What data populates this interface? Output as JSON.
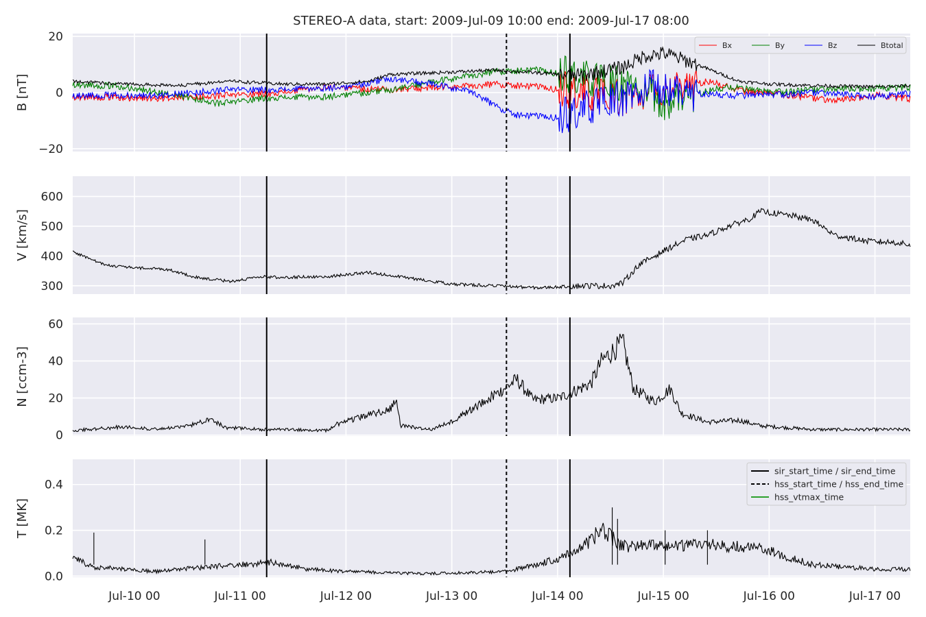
{
  "figure": {
    "title": "STEREO-A data, start: 2009-Jul-09 10:00  end: 2009-Jul-17 08:00",
    "background": "#ffffff",
    "axes_background": "#eaeaf2",
    "grid_color": "#ffffff"
  },
  "chart_data": [
    {
      "type": "line",
      "panel": "B",
      "ylabel": "B [nT]",
      "ylim": [
        -21,
        21
      ],
      "yticks": [
        -20,
        0,
        20
      ],
      "ytick_labels": [
        "−20",
        "0",
        "20"
      ],
      "grid": true,
      "legend": {
        "placement": "top-right",
        "columns": 4
      },
      "series": [
        {
          "name": "Bx",
          "color": "#ff0000",
          "key": [
            [
              0,
              -1.5
            ],
            [
              0.8,
              -2
            ],
            [
              1.5,
              -1
            ],
            [
              2.0,
              0
            ],
            [
              2.4,
              2
            ],
            [
              3.0,
              1
            ],
            [
              3.6,
              2
            ],
            [
              4.0,
              3
            ],
            [
              4.4,
              2
            ],
            [
              4.8,
              0
            ],
            [
              5.2,
              -2
            ],
            [
              5.6,
              1
            ],
            [
              6.0,
              4
            ],
            [
              6.4,
              0
            ],
            [
              6.8,
              -1
            ],
            [
              7.2,
              -3
            ],
            [
              7.6,
              -1
            ],
            [
              8.0,
              -2.5
            ]
          ]
        },
        {
          "name": "By",
          "color": "#008000",
          "key": [
            [
              0,
              3
            ],
            [
              0.5,
              2
            ],
            [
              1.0,
              -1
            ],
            [
              1.4,
              -4
            ],
            [
              1.8,
              -2
            ],
            [
              2.4,
              -1.5
            ],
            [
              3.0,
              1
            ],
            [
              3.6,
              5
            ],
            [
              4.0,
              7.5
            ],
            [
              4.4,
              8
            ],
            [
              5.0,
              4
            ],
            [
              5.3,
              2
            ],
            [
              5.6,
              -4
            ],
            [
              5.8,
              -1
            ],
            [
              6.2,
              2
            ],
            [
              6.6,
              0
            ],
            [
              7.0,
              1
            ],
            [
              7.6,
              1.5
            ],
            [
              8.0,
              2
            ]
          ]
        },
        {
          "name": "Bz",
          "color": "#0000ff",
          "key": [
            [
              0,
              -1
            ],
            [
              0.8,
              -1
            ],
            [
              1.5,
              1
            ],
            [
              2.0,
              1
            ],
            [
              2.6,
              2
            ],
            [
              3.0,
              5
            ],
            [
              3.4,
              3
            ],
            [
              3.8,
              0
            ],
            [
              4.0,
              -5
            ],
            [
              4.2,
              -8
            ],
            [
              4.6,
              -9
            ],
            [
              4.9,
              -5
            ],
            [
              5.2,
              -2
            ],
            [
              5.5,
              2
            ],
            [
              5.8,
              0
            ],
            [
              6.2,
              -1
            ],
            [
              6.6,
              -1
            ],
            [
              7.0,
              0
            ],
            [
              7.6,
              -1.5
            ],
            [
              8.0,
              0
            ]
          ]
        },
        {
          "name": "Btotal",
          "color": "#000000",
          "key": [
            [
              0,
              4
            ],
            [
              0.5,
              3
            ],
            [
              1.0,
              2.5
            ],
            [
              1.5,
              4
            ],
            [
              2.0,
              3
            ],
            [
              2.4,
              3
            ],
            [
              2.8,
              4
            ],
            [
              3.0,
              6.5
            ],
            [
              3.4,
              7
            ],
            [
              4.0,
              8
            ],
            [
              4.4,
              7
            ],
            [
              4.8,
              6
            ],
            [
              5.2,
              9
            ],
            [
              5.4,
              13
            ],
            [
              5.6,
              14
            ],
            [
              5.9,
              10
            ],
            [
              6.1,
              7
            ],
            [
              6.3,
              4
            ],
            [
              6.6,
              3
            ],
            [
              7.0,
              2.5
            ],
            [
              7.6,
              2
            ],
            [
              8.0,
              2.5
            ]
          ]
        }
      ]
    },
    {
      "type": "line",
      "panel": "V",
      "ylabel": "V [km/s]",
      "ylim": [
        272,
        668
      ],
      "yticks": [
        300,
        400,
        500,
        600
      ],
      "ytick_labels": [
        "300",
        "400",
        "500",
        "600"
      ],
      "grid": true,
      "series": [
        {
          "color": "#000000",
          "key": [
            [
              0,
              415
            ],
            [
              0.3,
              370
            ],
            [
              0.6,
              360
            ],
            [
              0.9,
              355
            ],
            [
              1.2,
              325
            ],
            [
              1.5,
              315
            ],
            [
              1.8,
              330
            ],
            [
              2.0,
              328
            ],
            [
              2.2,
              330
            ],
            [
              2.4,
              330
            ],
            [
              2.6,
              338
            ],
            [
              2.8,
              345
            ],
            [
              3.0,
              335
            ],
            [
              3.3,
              320
            ],
            [
              3.6,
              305
            ],
            [
              4.0,
              300
            ],
            [
              4.4,
              293
            ],
            [
              4.8,
              300
            ],
            [
              5.1,
              300
            ],
            [
              5.2,
              310
            ],
            [
              5.35,
              370
            ],
            [
              5.6,
              420
            ],
            [
              5.8,
              455
            ],
            [
              6.0,
              470
            ],
            [
              6.2,
              500
            ],
            [
              6.4,
              525
            ],
            [
              6.5,
              550
            ],
            [
              6.8,
              535
            ],
            [
              7.0,
              520
            ],
            [
              7.2,
              470
            ],
            [
              7.5,
              450
            ],
            [
              7.8,
              445
            ],
            [
              8.0,
              430
            ]
          ]
        }
      ]
    },
    {
      "type": "line",
      "panel": "N",
      "ylabel": "N [ccm-3]",
      "ylim": [
        -0.5,
        63.5
      ],
      "yticks": [
        0,
        20,
        40,
        60
      ],
      "ytick_labels": [
        "0",
        "20",
        "40",
        "60"
      ],
      "grid": true,
      "series": [
        {
          "color": "#000000",
          "key": [
            [
              0,
              2.5
            ],
            [
              0.5,
              4.5
            ],
            [
              0.8,
              3
            ],
            [
              1.1,
              5
            ],
            [
              1.3,
              9
            ],
            [
              1.45,
              4
            ],
            [
              1.8,
              3
            ],
            [
              2.0,
              3
            ],
            [
              2.4,
              2.5
            ],
            [
              2.5,
              6
            ],
            [
              2.8,
              11
            ],
            [
              3.0,
              14
            ],
            [
              3.05,
              20
            ],
            [
              3.1,
              5
            ],
            [
              3.4,
              3
            ],
            [
              3.6,
              8
            ],
            [
              3.8,
              15
            ],
            [
              4.0,
              22
            ],
            [
              4.2,
              30
            ],
            [
              4.35,
              19
            ],
            [
              4.6,
              20
            ],
            [
              4.9,
              28
            ],
            [
              5.0,
              40
            ],
            [
              5.2,
              50
            ],
            [
              5.3,
              25
            ],
            [
              5.5,
              18
            ],
            [
              5.65,
              25
            ],
            [
              5.75,
              12
            ],
            [
              6.0,
              7
            ],
            [
              6.3,
              8
            ],
            [
              6.5,
              5
            ],
            [
              7.0,
              3
            ],
            [
              8.0,
              3
            ],
            [
              8.6,
              4
            ],
            [
              9.0,
              7
            ],
            [
              9.4,
              9
            ]
          ]
        }
      ]
    },
    {
      "type": "line",
      "panel": "T",
      "ylabel": "T [MK]",
      "ylim": [
        -0.005,
        0.51
      ],
      "yticks": [
        0.0,
        0.2,
        0.4
      ],
      "ytick_labels": [
        "0.0",
        "0.2",
        "0.4"
      ],
      "grid": true,
      "legend": {
        "placement": "top-right",
        "columns": 1
      },
      "xlim_days": [
        0,
        7.9167
      ],
      "x_tick_labels": [
        "Jul-10 00",
        "Jul-11 00",
        "Jul-12 00",
        "Jul-13 00",
        "Jul-14 00",
        "Jul-15 00",
        "Jul-16 00",
        "Jul-17 00"
      ],
      "x_ticks_days": [
        0.5833,
        1.5833,
        2.5833,
        3.5833,
        4.5833,
        5.5833,
        6.5833,
        7.5833
      ],
      "series": [
        {
          "color": "#000000",
          "key": [
            [
              0,
              0.08
            ],
            [
              0.2,
              0.04
            ],
            [
              0.5,
              0.03
            ],
            [
              0.8,
              0.02
            ],
            [
              1.0,
              0.03
            ],
            [
              1.3,
              0.04
            ],
            [
              1.6,
              0.05
            ],
            [
              1.9,
              0.06
            ],
            [
              2.0,
              0.05
            ],
            [
              2.2,
              0.03
            ],
            [
              2.6,
              0.02
            ],
            [
              3.0,
              0.015
            ],
            [
              3.3,
              0.01
            ],
            [
              3.7,
              0.015
            ],
            [
              4.1,
              0.02
            ],
            [
              4.3,
              0.04
            ],
            [
              4.6,
              0.08
            ],
            [
              4.8,
              0.12
            ],
            [
              5.0,
              0.2
            ],
            [
              5.2,
              0.13
            ],
            [
              5.6,
              0.13
            ],
            [
              6.0,
              0.14
            ],
            [
              6.5,
              0.12
            ],
            [
              7.0,
              0.05
            ],
            [
              7.6,
              0.03
            ],
            [
              8.0,
              0.03
            ]
          ]
        }
      ]
    }
  ],
  "events": {
    "sir_start_day": 1.8333,
    "hss_start_day": 4.1,
    "sir_end_day": 4.7,
    "legend": [
      {
        "label": "sir_start_time / sir_end_time",
        "style": "solid",
        "color": "#000000"
      },
      {
        "label": "hss_start_time / hss_end_time",
        "style": "dashed",
        "color": "#000000"
      },
      {
        "label": "hss_vtmax_time",
        "style": "solid",
        "color": "#2ca02c"
      }
    ]
  }
}
